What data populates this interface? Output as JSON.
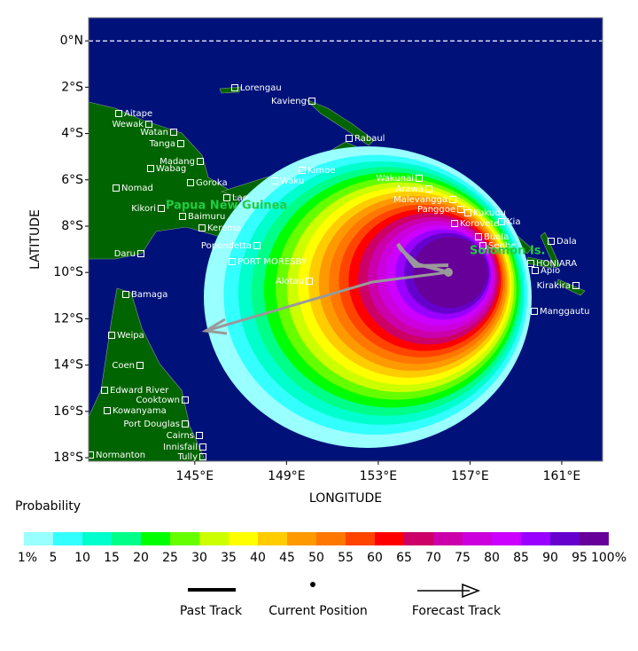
{
  "map": {
    "xlabel": "LONGITUDE",
    "ylabel": "LATITUDE",
    "xlim": [
      140.37,
      162.78
    ],
    "ylim": [
      -18.15,
      1.0
    ],
    "xticks": [
      {
        "value": 145,
        "label": "145°E"
      },
      {
        "value": 149,
        "label": "149°E"
      },
      {
        "value": 153,
        "label": "153°E"
      },
      {
        "value": 157,
        "label": "157°E"
      },
      {
        "value": 161,
        "label": "161°E"
      }
    ],
    "yticks": [
      {
        "value": 0,
        "label": "0°N"
      },
      {
        "value": -2,
        "label": "2°S"
      },
      {
        "value": -4,
        "label": "4°S"
      },
      {
        "value": -6,
        "label": "6°S"
      },
      {
        "value": -8,
        "label": "8°S"
      },
      {
        "value": -10,
        "label": "10°S"
      },
      {
        "value": -12,
        "label": "12°S"
      },
      {
        "value": -14,
        "label": "14°S"
      },
      {
        "value": -16,
        "label": "16°S"
      },
      {
        "value": -18,
        "label": "18°S"
      }
    ],
    "equator_line": true,
    "ocean_color": "#00127a",
    "land_color": "#006400"
  },
  "places": [
    "Lorengau",
    "Kavieng",
    "Rabaul",
    "Aitape",
    "Wewak",
    "Watan",
    "Tanga",
    "Madang",
    "Wabag",
    "Goroka",
    "Nomad",
    "Kimbe",
    "Waku",
    "Lae",
    "Wakunai",
    "Arawa",
    "Malevangga",
    "Panggoe",
    "Kukudu",
    "Kia",
    "Dala",
    "Korovete",
    "Buala",
    "Seghe",
    "HONIARA",
    "Apio",
    "Kirakira",
    "Manggautu",
    "Kikori",
    "Baimuru",
    "Kerema",
    "Popondetta",
    "PORT MORESBY",
    "Daru",
    "Alotau",
    "Bamaga",
    "Weipa",
    "Coen",
    "Edward River",
    "Cooktown",
    "Kowanyama",
    "Port Douglas",
    "Cairns",
    "Innisfail",
    "Tully",
    "Normanton"
  ],
  "regions": [
    "Papua New Guinea",
    "Solomon Is."
  ],
  "legend": {
    "title": "Probability",
    "labels": [
      "1%",
      "5",
      "10",
      "15",
      "20",
      "25",
      "30",
      "35",
      "40",
      "45",
      "50",
      "55",
      "60",
      "65",
      "70",
      "75",
      "80",
      "85",
      "90",
      "95",
      "100%"
    ],
    "colors": [
      "#99ffff",
      "#33ffff",
      "#00ffcc",
      "#00ff88",
      "#00ff00",
      "#66ff00",
      "#ccff00",
      "#ffff00",
      "#ffcc00",
      "#ff9900",
      "#ff7700",
      "#ff4400",
      "#ff0000",
      "#cc0066",
      "#cc00aa",
      "#cc00dd",
      "#cc00ff",
      "#9900ff",
      "#6600cc",
      "#660099"
    ]
  },
  "tracks": {
    "past": "Past Track",
    "current": "Current Position",
    "forecast": "Forecast Track"
  }
}
